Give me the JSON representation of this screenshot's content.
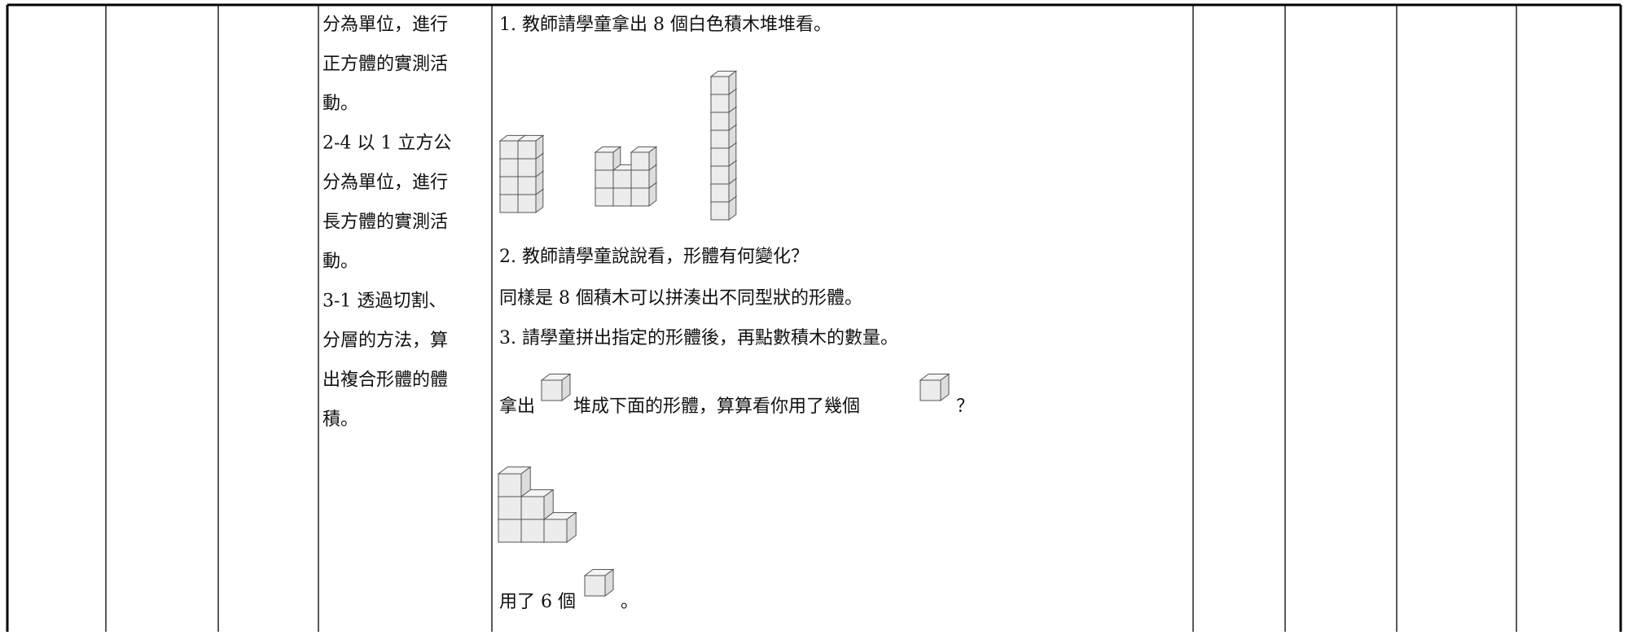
{
  "objectives": [
    "分為單位，進行",
    "正方體的實測活",
    "動。",
    "2-4 以 1 立方公",
    "分為單位，進行",
    "長方體的實測活",
    "動。",
    "3-1 透過切割、",
    "分層的方法，算",
    "出複合形體的體",
    "積。"
  ],
  "activity": {
    "step1": "1. 教師請學童拿出 8 個白色積木堆堆看。",
    "step2": "2. 教師請學童說說看，形體有何變化？",
    "step2_note": "同樣是 8 個積木可以拼湊出不同型狀的形體。",
    "step3": "3. 請學童拼出指定的形體後，再點數積木的數量。",
    "prompt_before": "拿出",
    "prompt_middle": "堆成下面的形體，算算看你用了幾個",
    "prompt_end": "？",
    "answer_before": "用了 6 個",
    "answer_end": "。"
  }
}
